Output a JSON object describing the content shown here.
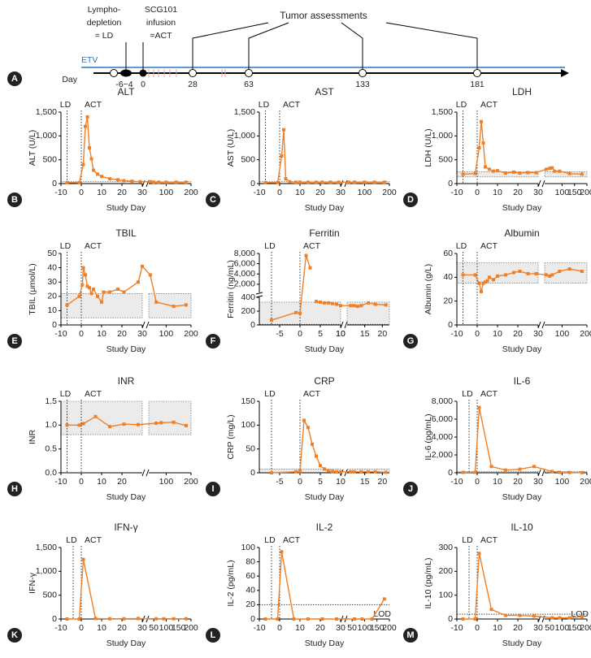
{
  "panel_a": {
    "panel": "A",
    "ld_label": [
      "Lympho-",
      "depletion",
      "= LD"
    ],
    "act_label": [
      "SCG101",
      "infusion",
      "=ACT"
    ],
    "assess_label": "Tumor assessments",
    "etv_label": "ETV",
    "axis_label": "Day",
    "ld_days": "-6~4",
    "days": [
      0,
      28,
      63,
      133,
      181
    ]
  },
  "chart_data": [
    {
      "type": "line",
      "panel": "B",
      "title": "ALT",
      "ylabel": "ALT (U/L)",
      "xlabel": "Study Day",
      "color": "#f07f25",
      "annotations": [
        {
          "text": "LD",
          "x": -7
        },
        {
          "text": "ACT",
          "x": 0
        }
      ],
      "normal_range": [
        0,
        40
      ],
      "xsegments": [
        {
          "xlim": [
            -10,
            30
          ],
          "xticks": [
            -10,
            0,
            10,
            20,
            30
          ]
        },
        {
          "xlim": [
            30,
            200
          ],
          "xticks": [
            100,
            200
          ]
        }
      ],
      "ysegments": [
        {
          "ylim": [
            0,
            1500
          ],
          "yticks": [
            0,
            500,
            {
              "value": 1000,
              "label": "1,000"
            },
            {
              "value": 1500,
              "label": "1,500"
            }
          ]
        }
      ],
      "x": [
        -7,
        -1,
        1,
        2,
        3,
        4,
        5,
        6,
        8,
        10,
        14,
        18,
        21,
        25,
        29,
        36,
        50,
        70,
        100,
        140,
        180
      ],
      "values": [
        20,
        20,
        400,
        1200,
        1400,
        750,
        520,
        280,
        200,
        150,
        100,
        80,
        60,
        50,
        40,
        40,
        30,
        30,
        30,
        30,
        30
      ]
    },
    {
      "type": "line",
      "panel": "C",
      "title": "AST",
      "ylabel": "AST (U/L)",
      "xlabel": "Study Day",
      "color": "#f07f25",
      "annotations": [
        {
          "text": "LD",
          "x": -7
        },
        {
          "text": "ACT",
          "x": 0
        }
      ],
      "normal_range": [
        0,
        40
      ],
      "xsegments": [
        {
          "xlim": [
            -10,
            30
          ],
          "xticks": [
            -10,
            0,
            10,
            20,
            30
          ]
        },
        {
          "xlim": [
            30,
            200
          ],
          "xticks": [
            100,
            200
          ]
        }
      ],
      "ysegments": [
        {
          "ylim": [
            0,
            1500
          ],
          "yticks": [
            0,
            500,
            {
              "value": 1000,
              "label": "1,000"
            },
            {
              "value": 1500,
              "label": "1,500"
            }
          ]
        }
      ],
      "x": [
        -7,
        -1,
        1,
        2,
        3,
        5,
        8,
        10,
        14,
        18,
        21,
        25,
        29,
        36,
        60,
        100,
        140,
        180
      ],
      "values": [
        20,
        20,
        580,
        1130,
        100,
        40,
        30,
        30,
        30,
        30,
        30,
        30,
        30,
        30,
        30,
        30,
        30,
        30
      ]
    },
    {
      "type": "line",
      "panel": "D",
      "title": "LDH",
      "ylabel": "LDH (U/L)",
      "xlabel": "Study Day",
      "color": "#f07f25",
      "annotations": [
        {
          "text": "LD",
          "x": -7
        },
        {
          "text": "ACT",
          "x": 0
        }
      ],
      "normal_range": [
        140,
        250
      ],
      "xsegments": [
        {
          "xlim": [
            -10,
            30
          ],
          "xticks": [
            -10,
            0,
            10,
            20,
            30
          ]
        },
        {
          "xlim": [
            30,
            200
          ],
          "xticks": [
            100,
            150,
            200
          ]
        }
      ],
      "ysegments": [
        {
          "ylim": [
            0,
            1500
          ],
          "yticks": [
            0,
            500,
            {
              "value": 1000,
              "label": "1,000"
            },
            {
              "value": 1500,
              "label": "1,500"
            }
          ]
        }
      ],
      "x": [
        -7,
        -1,
        1,
        2,
        3,
        4,
        6,
        8,
        10,
        14,
        18,
        21,
        25,
        29,
        36,
        50,
        60,
        70,
        90,
        130,
        180
      ],
      "values": [
        200,
        210,
        750,
        1300,
        850,
        350,
        300,
        260,
        270,
        220,
        240,
        220,
        230,
        230,
        300,
        320,
        330,
        260,
        260,
        210,
        200
      ]
    },
    {
      "type": "line",
      "panel": "E",
      "title": "TBIL",
      "ylabel": "TBIL (μmol/L)",
      "xlabel": "Study Day",
      "color": "#f07f25",
      "annotations": [
        {
          "text": "LD",
          "x": -7
        },
        {
          "text": "ACT",
          "x": 0
        }
      ],
      "normal_range": [
        5,
        22
      ],
      "xsegments": [
        {
          "xlim": [
            -10,
            30
          ],
          "xticks": [
            -10,
            0,
            10,
            20,
            30
          ]
        },
        {
          "xlim": [
            30,
            200
          ],
          "xticks": [
            100,
            200
          ]
        }
      ],
      "ysegments": [
        {
          "ylim": [
            0,
            50
          ],
          "yticks": [
            0,
            10,
            20,
            30,
            40,
            50
          ]
        }
      ],
      "x": [
        -7,
        -1,
        0.5,
        1,
        2,
        3,
        4,
        5,
        6,
        8,
        10,
        11,
        14,
        18,
        21,
        28,
        30,
        36,
        60,
        130,
        180
      ],
      "values": [
        14,
        20,
        28,
        40,
        35,
        27,
        26,
        22,
        25,
        20,
        16,
        23,
        23,
        25,
        23,
        30,
        41,
        35,
        16,
        13,
        14
      ]
    },
    {
      "type": "line",
      "panel": "F",
      "title": "Ferritin",
      "ylabel": "Ferritin (ng/mL)",
      "xlabel": "Study Day",
      "color": "#f07f25",
      "annotations": [
        {
          "text": "LD",
          "x": -7
        },
        {
          "text": "ACT",
          "x": 0
        }
      ],
      "normal_range": [
        10,
        330
      ],
      "xsegments": [
        {
          "xlim": [
            -10,
            10
          ],
          "xticks": [
            -5,
            0,
            5,
            10
          ]
        },
        {
          "xlim": [
            10,
            22
          ],
          "xticks": [
            10,
            15,
            20
          ]
        }
      ],
      "ysegments": [
        {
          "ylim": [
            0,
            400
          ],
          "yticks": [
            0,
            200,
            400
          ]
        },
        {
          "ylim": [
            400,
            8000
          ],
          "yticks": [
            {
              "value": 2000,
              "label": "2,000"
            },
            {
              "value": 4000,
              "label": "4,000"
            },
            {
              "value": 6000,
              "label": "6,000"
            },
            {
              "value": 8000,
              "label": "8,000"
            }
          ]
        }
      ],
      "x": [
        -7,
        -1,
        0,
        1.5,
        2.5,
        3,
        4,
        5,
        6,
        7,
        8,
        9,
        10,
        11,
        12,
        13,
        14,
        16,
        18,
        21
      ],
      "values": [
        70,
        180,
        170,
        7600,
        5200,
        null,
        340,
        330,
        320,
        320,
        310,
        300,
        280,
        280,
        280,
        270,
        280,
        320,
        300,
        290
      ]
    },
    {
      "type": "line",
      "panel": "G",
      "title": "Albumin",
      "ylabel": "Albumin (g/L)",
      "xlabel": "Study Day",
      "color": "#f07f25",
      "annotations": [
        {
          "text": "LD",
          "x": -7
        },
        {
          "text": "ACT",
          "x": 0
        }
      ],
      "normal_range": [
        35,
        52
      ],
      "xsegments": [
        {
          "xlim": [
            -10,
            30
          ],
          "xticks": [
            -10,
            0,
            10,
            20,
            30
          ]
        },
        {
          "xlim": [
            30,
            200
          ],
          "xticks": [
            100,
            200
          ]
        }
      ],
      "ysegments": [
        {
          "ylim": [
            0,
            60
          ],
          "yticks": [
            0,
            20,
            40,
            60
          ]
        }
      ],
      "x": [
        -7,
        -1,
        1,
        2,
        3,
        4,
        5,
        6,
        8,
        10,
        14,
        18,
        21,
        25,
        29,
        36,
        50,
        60,
        90,
        130,
        180
      ],
      "values": [
        42,
        42,
        35,
        28,
        35,
        36,
        37,
        40,
        38,
        41,
        42,
        44,
        45,
        43,
        43,
        42,
        41,
        42,
        45,
        47,
        45
      ]
    },
    {
      "type": "line",
      "panel": "H",
      "title": "INR",
      "ylabel": "INR",
      "xlabel": "Study Day",
      "color": "#f07f25",
      "annotations": [
        {
          "text": "LD",
          "x": -7
        },
        {
          "text": "ACT",
          "x": 0
        }
      ],
      "normal_range": [
        0.8,
        1.5
      ],
      "xsegments": [
        {
          "xlim": [
            -10,
            30
          ],
          "xticks": [
            -10,
            0,
            10,
            20
          ]
        },
        {
          "xlim": [
            30,
            200
          ],
          "xticks": [
            100,
            200
          ]
        }
      ],
      "ysegments": [
        {
          "ylim": [
            0,
            1.5
          ],
          "yticks": [
            {
              "value": 0,
              "label": "0.0"
            },
            0.5,
            {
              "value": 1,
              "label": "1.0"
            },
            1.5
          ]
        }
      ],
      "x": [
        -7,
        -1,
        1,
        7,
        14,
        21,
        28,
        60,
        80,
        130,
        180
      ],
      "values": [
        1.0,
        1.0,
        1.03,
        1.18,
        0.97,
        1.02,
        1.01,
        1.04,
        1.05,
        1.06,
        0.99
      ]
    },
    {
      "type": "line",
      "panel": "I",
      "title": "CRP",
      "ylabel": "CRP (mg/L)",
      "xlabel": "Study Day",
      "color": "#f07f25",
      "annotations": [
        {
          "text": "LD",
          "x": -7
        },
        {
          "text": "ACT",
          "x": 0
        }
      ],
      "normal_range": [
        0,
        8
      ],
      "xsegments": [
        {
          "xlim": [
            -10,
            10
          ],
          "xticks": [
            -5,
            0,
            5,
            10
          ]
        },
        {
          "xlim": [
            10,
            22
          ],
          "xticks": [
            15,
            20
          ]
        }
      ],
      "ysegments": [
        {
          "ylim": [
            0,
            150
          ],
          "yticks": [
            0,
            50,
            100,
            150
          ]
        }
      ],
      "x": [
        -7,
        -1,
        0,
        1,
        2,
        3,
        4,
        5,
        6,
        7,
        8,
        9,
        10,
        11,
        12,
        14,
        16,
        18,
        21
      ],
      "values": [
        0,
        2,
        3,
        110,
        95,
        60,
        35,
        15,
        8,
        4,
        3,
        2,
        2,
        2,
        2,
        2,
        2,
        2,
        1
      ]
    },
    {
      "type": "line",
      "panel": "J",
      "title": "IL-6",
      "ylabel": "IL-6 (pg/mL)",
      "xlabel": "Study Day",
      "color": "#f07f25",
      "annotations": [
        {
          "text": "LD",
          "x": -4
        },
        {
          "text": "ACT",
          "x": 0
        }
      ],
      "normal_range": [
        0,
        150
      ],
      "xsegments": [
        {
          "xlim": [
            -10,
            30
          ],
          "xticks": [
            -10,
            0,
            10,
            20,
            30
          ]
        },
        {
          "xlim": [
            30,
            200
          ],
          "xticks": [
            100,
            200
          ]
        }
      ],
      "ysegments": [
        {
          "ylim": [
            0,
            8000
          ],
          "yticks": [
            0,
            {
              "value": 2000,
              "label": "2,000"
            },
            {
              "value": 4000,
              "label": "4,000"
            },
            {
              "value": 6000,
              "label": "6,000"
            },
            {
              "value": 8000,
              "label": "8,000"
            }
          ]
        }
      ],
      "x": [
        -7,
        -1,
        1,
        7,
        14,
        21,
        28,
        60,
        90,
        130,
        180
      ],
      "values": [
        50,
        60,
        7300,
        700,
        300,
        400,
        700,
        150,
        50,
        30,
        20
      ]
    },
    {
      "type": "line",
      "panel": "K",
      "title": "IFN-γ",
      "ylabel": "IFN-γ",
      "xlabel": "Study Day",
      "color": "#f07f25",
      "annotations": [
        {
          "text": "LD",
          "x": -4
        },
        {
          "text": "ACT",
          "x": 0
        }
      ],
      "xsegments": [
        {
          "xlim": [
            -10,
            30
          ],
          "xticks": [
            -10,
            0,
            10,
            20,
            30
          ]
        },
        {
          "xlim": [
            30,
            200
          ],
          "xticks": [
            50,
            100,
            150,
            200
          ]
        }
      ],
      "ysegments": [
        {
          "ylim": [
            0,
            1500
          ],
          "yticks": [
            0,
            500,
            {
              "value": 1000,
              "label": "1,000"
            },
            {
              "value": 1500,
              "label": "1,500"
            }
          ]
        }
      ],
      "x": [
        -7,
        -1,
        1,
        7,
        14,
        21,
        28,
        60,
        90,
        130,
        180
      ],
      "values": [
        0,
        0,
        1250,
        10,
        5,
        5,
        10,
        5,
        5,
        5,
        5
      ]
    },
    {
      "type": "line",
      "panel": "L",
      "title": "IL-2",
      "ylabel": "IL-2 (pg/mL)",
      "xlabel": "Study Day",
      "color": "#f07f25",
      "annotations": [
        {
          "text": "LD",
          "x": -4
        },
        {
          "text": "ACT",
          "x": 0
        }
      ],
      "lod": {
        "value": 20,
        "label": "LOD"
      },
      "xsegments": [
        {
          "xlim": [
            -10,
            30
          ],
          "xticks": [
            -10,
            0,
            10,
            20,
            30
          ]
        },
        {
          "xlim": [
            30,
            200
          ],
          "xticks": [
            50,
            100,
            150,
            200
          ]
        }
      ],
      "ysegments": [
        {
          "ylim": [
            0,
            100
          ],
          "yticks": [
            0,
            20,
            40,
            60,
            80,
            100
          ]
        }
      ],
      "x": [
        -7,
        -1,
        1,
        7,
        14,
        21,
        28,
        60,
        90,
        130,
        180
      ],
      "values": [
        0,
        0,
        94,
        0,
        0,
        0,
        0,
        0,
        0,
        0,
        28
      ]
    },
    {
      "type": "line",
      "panel": "M",
      "title": "IL-10",
      "ylabel": "IL-10 (pg/mL)",
      "xlabel": "Study Day",
      "color": "#f07f25",
      "annotations": [
        {
          "text": "LD",
          "x": -4
        },
        {
          "text": "ACT",
          "x": 0
        }
      ],
      "lod": {
        "value": 20,
        "label": "LOD"
      },
      "xsegments": [
        {
          "xlim": [
            -10,
            30
          ],
          "xticks": [
            -10,
            0,
            10,
            20,
            30
          ]
        },
        {
          "xlim": [
            30,
            200
          ],
          "xticks": [
            50,
            100,
            150,
            200
          ]
        }
      ],
      "ysegments": [
        {
          "ylim": [
            0,
            300
          ],
          "yticks": [
            0,
            100,
            200,
            300
          ]
        }
      ],
      "x": [
        -7,
        -1,
        1,
        7,
        14,
        21,
        28,
        60,
        90,
        130,
        180
      ],
      "values": [
        0,
        0,
        275,
        40,
        15,
        15,
        12,
        5,
        5,
        5,
        10
      ]
    }
  ]
}
